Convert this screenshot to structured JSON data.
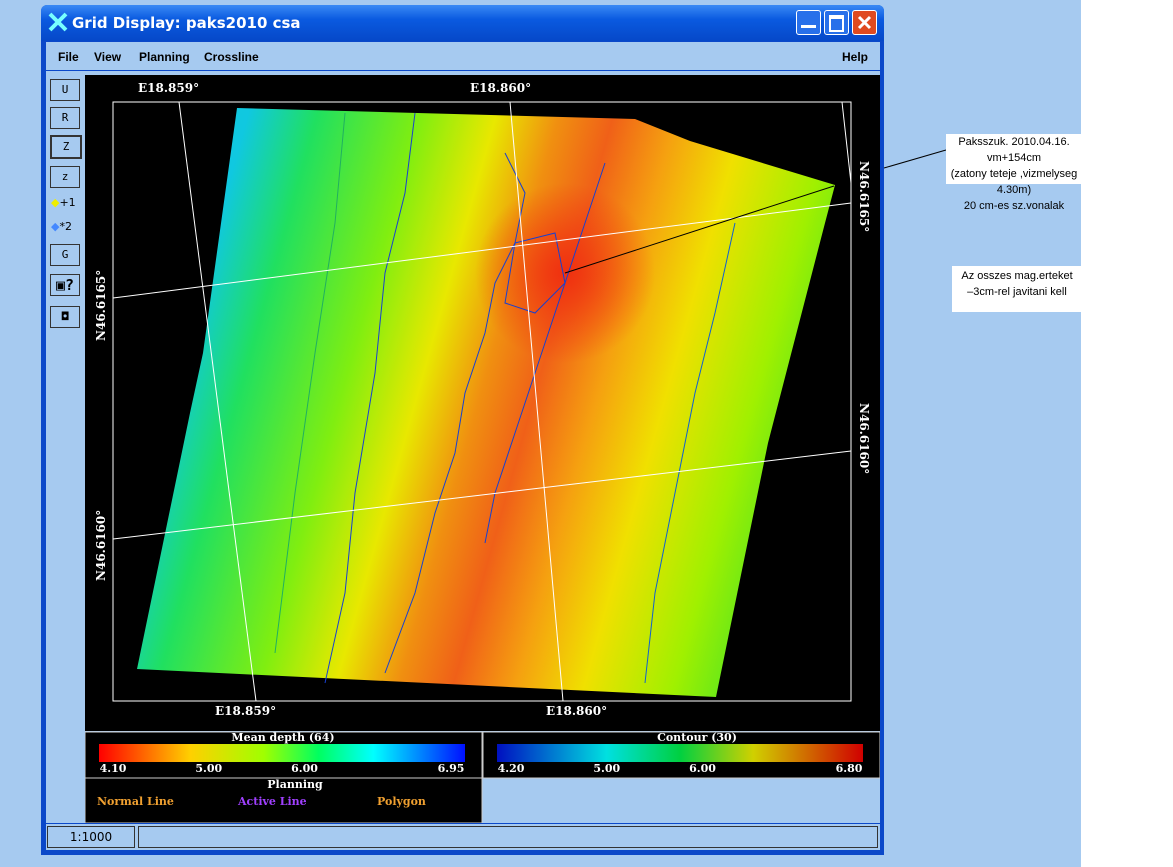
{
  "window": {
    "title": "Grid Display: paks2010 csa"
  },
  "menu": {
    "items": [
      "File",
      "View",
      "Planning",
      "Crossline"
    ],
    "help": "Help"
  },
  "toolbar": {
    "buttons": [
      "U",
      "R",
      "Z",
      "z",
      "+1",
      "*2",
      "G"
    ]
  },
  "map": {
    "top_labels": [
      "E18.859°",
      "E18.860°"
    ],
    "bottom_labels": [
      "E18.859°",
      "E18.860°"
    ],
    "left_labels": [
      "N46.6165°",
      "N46.6160°"
    ],
    "right_labels": [
      "N46.6165°",
      "N46.6160°"
    ]
  },
  "legend_depth": {
    "title": "Mean depth (64)",
    "ticks": [
      "4.10",
      "5.00",
      "6.00",
      "6.95"
    ]
  },
  "legend_contour": {
    "title": "Contour (30)",
    "ticks": [
      "4.20",
      "5.00",
      "6.00",
      "6.80"
    ]
  },
  "planning": {
    "title": "Planning",
    "items": [
      "Normal Line",
      "Active Line",
      "Polygon"
    ]
  },
  "status": {
    "scale": "1:1000"
  },
  "annotations": [
    {
      "lines": [
        "Paksszuk. 2010.04.16. vm+154cm",
        "(zatony teteje ,vizmelyseg 4.30m)",
        "20 cm-es sz.vonalak"
      ]
    },
    {
      "lines": [
        "Az osszes mag.erteket",
        "–3cm-rel javitani kell"
      ]
    }
  ]
}
